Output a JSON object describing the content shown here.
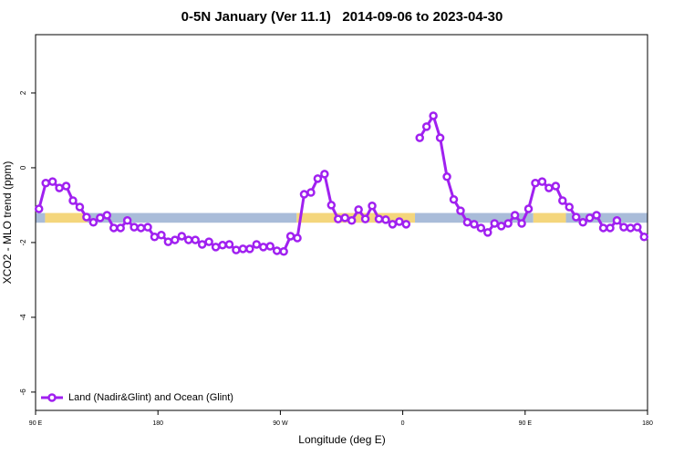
{
  "chart_data": {
    "type": "line",
    "title": "0-5N January (Ver 11.1)   2014-09-06 to 2023-04-30",
    "x_label": "Longitude (deg E)",
    "y_label": "XCO2 - MLO trend (ppm)",
    "xlim": [
      90,
      540
    ],
    "xticks": [
      {
        "value": 90,
        "label": "90 E"
      },
      180,
      {
        "value": 270,
        "label": "90 W"
      },
      {
        "value": 360,
        "label": "0"
      },
      {
        "value": 450,
        "label": "90 E"
      },
      {
        "value": 540,
        "label": "180"
      }
    ],
    "ylim": [
      -6.49,
      3.56
    ],
    "yticks": [
      2,
      0,
      -2,
      -4,
      -6
    ],
    "legend": "bottom-left",
    "surface_band": {
      "y": [
        -1.21,
        -1.47
      ],
      "segments": [
        {
          "x": [
            90,
            97
          ],
          "color": "#a9bcd9"
        },
        {
          "x": [
            97,
            128
          ],
          "color": "#f4d67c"
        },
        {
          "x": [
            128,
            282
          ],
          "color": "#a9bcd9"
        },
        {
          "x": [
            282,
            369
          ],
          "color": "#f4d67c"
        },
        {
          "x": [
            369,
            456
          ],
          "color": "#a9bcd9"
        },
        {
          "x": [
            456,
            480
          ],
          "color": "#f4d67c"
        },
        {
          "x": [
            480,
            540
          ],
          "color": "#a9bcd9"
        }
      ]
    },
    "x": [
      92.5,
      97.5,
      102.5,
      107.5,
      112.5,
      117.5,
      122.5,
      127.5,
      132.5,
      137.5,
      142.5,
      147.5,
      152.5,
      157.5,
      162.5,
      167.5,
      172.5,
      177.5,
      182.5,
      187.5,
      192.5,
      197.5,
      202.5,
      207.5,
      212.5,
      217.5,
      222.5,
      227.5,
      232.5,
      237.5,
      242.5,
      247.5,
      252.5,
      257.5,
      262.5,
      267.5,
      272.5,
      277.5,
      282.5,
      287.5,
      292.5,
      297.5,
      302.5,
      307.5,
      312.5,
      317.5,
      322.5,
      327.5,
      332.5,
      337.5,
      342.5,
      347.5,
      352.5,
      357.5,
      362.5,
      367.5,
      372.5,
      377.5,
      382.5,
      387.5,
      392.5,
      397.5,
      402.5,
      407.5,
      412.5,
      417.5,
      422.5,
      427.5,
      432.5,
      437.5,
      442.5,
      447.5,
      452.5,
      457.5,
      462.5,
      467.5,
      472.5,
      477.5,
      482.5,
      487.5,
      492.5,
      497.5,
      502.5,
      507.5,
      512.5,
      517.5,
      522.5,
      527.5,
      532.5,
      537.5
    ],
    "series": [
      {
        "name": "Land (Nadir&Glint) and Ocean (Glint)",
        "color": "#a020f0",
        "values": [
          -1.1,
          -0.41,
          -0.37,
          -0.54,
          -0.49,
          -0.88,
          -1.05,
          -1.32,
          -1.46,
          -1.34,
          -1.27,
          -1.61,
          -1.61,
          -1.41,
          -1.59,
          -1.61,
          -1.59,
          -1.85,
          -1.8,
          -1.98,
          -1.93,
          -1.83,
          -1.93,
          -1.93,
          -2.05,
          -1.98,
          -2.12,
          -2.07,
          -2.05,
          -2.2,
          -2.17,
          -2.17,
          -2.05,
          -2.12,
          -2.1,
          -2.22,
          -2.24,
          -1.83,
          -1.88,
          -0.71,
          -0.66,
          -0.29,
          -0.17,
          -1.0,
          -1.37,
          -1.34,
          -1.41,
          -1.12,
          -1.37,
          -1.02,
          -1.37,
          -1.39,
          -1.51,
          -1.44,
          -1.51,
          null,
          0.8,
          1.1,
          1.39,
          0.8,
          -0.24,
          -0.85,
          -1.15,
          -1.46,
          -1.51,
          -1.61,
          -1.73,
          -1.49,
          -1.56,
          -1.49,
          -1.27,
          -1.49,
          -1.1,
          -0.41,
          -0.37,
          -0.54,
          -0.49,
          -0.88,
          -1.05,
          -1.32,
          -1.46,
          -1.34,
          -1.27,
          -1.61,
          -1.61,
          -1.41,
          -1.59,
          -1.61,
          -1.59,
          -1.85
        ]
      }
    ]
  }
}
